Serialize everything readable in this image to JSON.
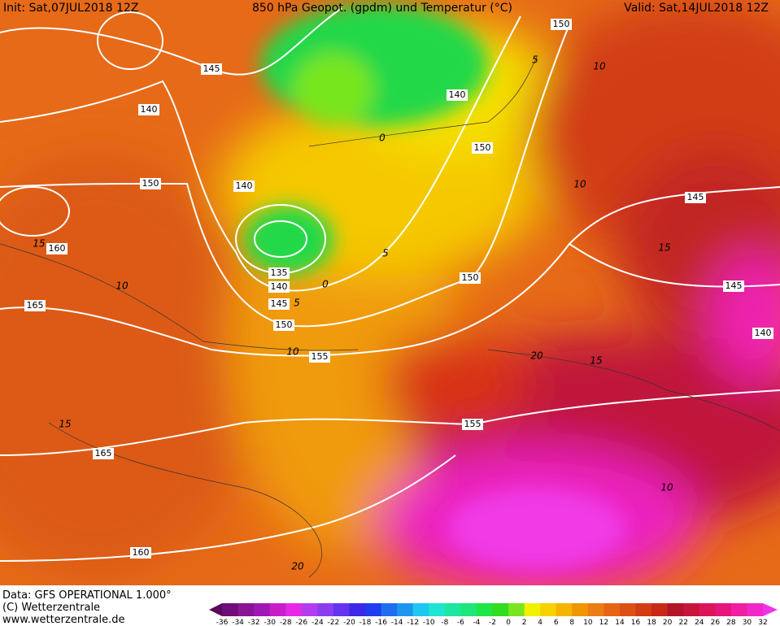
{
  "header": {
    "init": "Init: Sat,07JUL2018 12Z",
    "title": "850 hPa Geopot. (gpdm) und Temperatur (°C)",
    "valid": "Valid: Sat,14JUL2018 12Z"
  },
  "footer": {
    "data": "Data: GFS OPERATIONAL 1.000°",
    "copyright": "(C) Wetterzentrale",
    "url": "www.wetterzentrale.de"
  },
  "contours": {
    "geopotential": [
      150,
      145,
      140,
      140,
      150,
      140,
      150,
      145,
      160,
      135,
      140,
      150,
      145,
      145,
      165,
      150,
      140,
      155,
      155,
      165,
      160
    ],
    "temperature": [
      5,
      10,
      0,
      5,
      10,
      15,
      10,
      5,
      0,
      10,
      20,
      15,
      15,
      10,
      20,
      15
    ]
  },
  "legend": {
    "labels": [
      -36,
      -34,
      -32,
      -30,
      -28,
      -26,
      -24,
      -22,
      -20,
      -18,
      -16,
      -14,
      -12,
      -10,
      -8,
      -6,
      -4,
      -2,
      0,
      2,
      4,
      6,
      8,
      10,
      12,
      14,
      16,
      18,
      20,
      22,
      24,
      26,
      28,
      30,
      32
    ],
    "colors": [
      "#5a0a5a",
      "#6e0e78",
      "#8a1496",
      "#a018b4",
      "#c81ec8",
      "#e628e6",
      "#b43cf0",
      "#8c3cf0",
      "#6432f0",
      "#3c28e6",
      "#1e3cf0",
      "#1e6ef0",
      "#1e96f0",
      "#1ec8f0",
      "#1ee6d2",
      "#1ee6a0",
      "#1ee678",
      "#1ee646",
      "#32dc1e",
      "#78e61e",
      "#f0f000",
      "#f5d200",
      "#f5b400",
      "#f09600",
      "#eb7d14",
      "#e66414",
      "#dc5014",
      "#d23c14",
      "#c82814",
      "#b41428",
      "#c8143c",
      "#dc145a",
      "#e6147d",
      "#f01ea0",
      "#f028c8",
      "#f032e6"
    ]
  }
}
